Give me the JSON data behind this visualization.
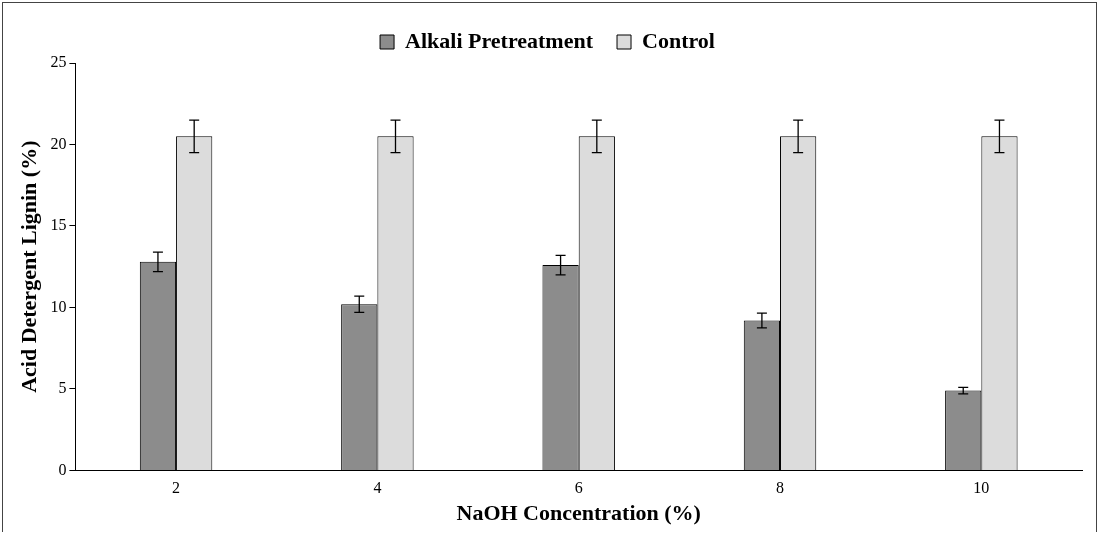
{
  "chart_data": {
    "type": "bar",
    "xlabel": "NaOH Concentration (%)",
    "ylabel": "Acid Detergent Lignin (%)",
    "categories": [
      "2",
      "4",
      "6",
      "8",
      "10"
    ],
    "series": [
      {
        "name": "Alkali Pretreatment",
        "color": "#8c8c8c",
        "values": [
          12.8,
          10.2,
          12.6,
          9.2,
          4.9
        ],
        "errors": [
          0.6,
          0.5,
          0.6,
          0.45,
          0.2
        ]
      },
      {
        "name": "Control",
        "color": "#dcdcdc",
        "values": [
          20.5,
          20.5,
          20.5,
          20.5,
          20.5
        ],
        "errors": [
          1,
          1,
          1,
          1,
          1
        ]
      }
    ],
    "ylim": [
      0,
      25
    ],
    "yticks": [
      0,
      5,
      10,
      15,
      20,
      25
    ],
    "grid": false,
    "legend": "top"
  }
}
